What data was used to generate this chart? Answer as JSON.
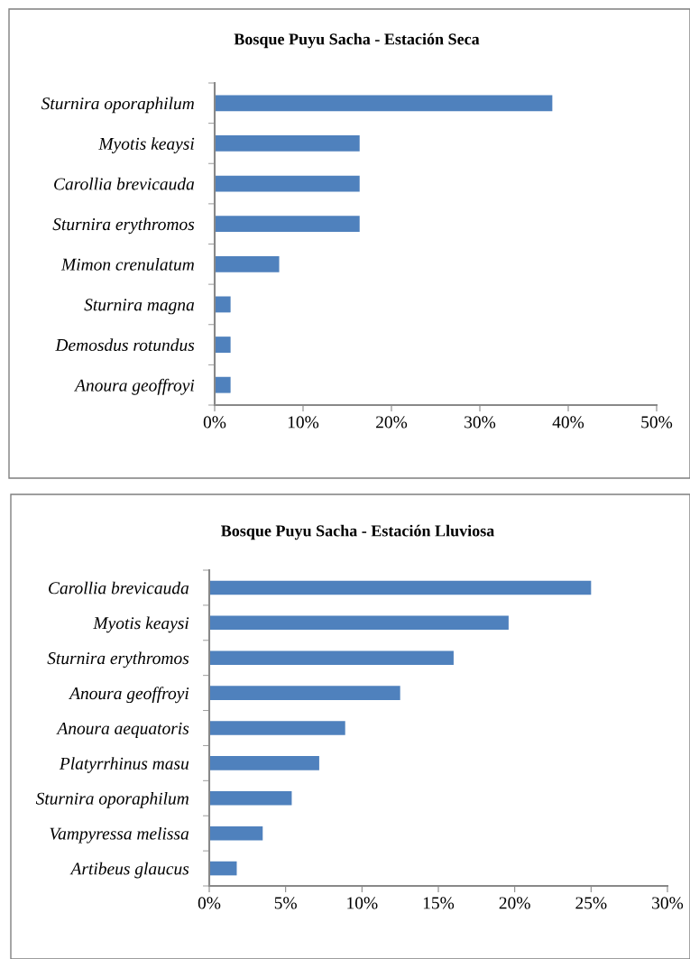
{
  "chart_data": [
    {
      "type": "bar",
      "orientation": "horizontal",
      "title": "Bosque Puyu Sacha - Estación Seca",
      "categories": [
        "Sturnira oporaphilum",
        "Myotis keaysi",
        "Carollia brevicauda",
        "Sturnira erythromos",
        "Mimon crenulatum",
        "Sturnira magna",
        "Demosdus rotundus",
        "Anoura geoffroyi"
      ],
      "values": [
        38.2,
        16.4,
        16.4,
        16.4,
        7.3,
        1.8,
        1.8,
        1.8
      ],
      "color": "#4f81bd",
      "xlim": [
        0,
        50
      ],
      "xticks": [
        {
          "value": 0,
          "label": "0%"
        },
        {
          "value": 10,
          "label": "10%"
        },
        {
          "value": 20,
          "label": "20%"
        },
        {
          "value": 30,
          "label": "30%"
        },
        {
          "value": 40,
          "label": "40%"
        },
        {
          "value": 50,
          "label": "50%"
        }
      ],
      "grid": false,
      "legend": false
    },
    {
      "type": "bar",
      "orientation": "horizontal",
      "title": "Bosque Puyu Sacha - Estación Lluviosa",
      "categories": [
        "Carollia brevicauda",
        "Myotis keaysi",
        "Sturnira erythromos",
        "Anoura geoffroyi",
        "Anoura aequatoris",
        "Platyrrhinus masu",
        "Sturnira oporaphilum",
        "Vampyressa melissa",
        "Artibeus glaucus"
      ],
      "values": [
        25.0,
        19.6,
        16.0,
        12.5,
        8.9,
        7.2,
        5.4,
        3.5,
        1.8
      ],
      "color": "#4f81bd",
      "xlim": [
        0,
        30
      ],
      "xticks": [
        {
          "value": 0,
          "label": "0%"
        },
        {
          "value": 5,
          "label": "5%"
        },
        {
          "value": 10,
          "label": "10%"
        },
        {
          "value": 15,
          "label": "15%"
        },
        {
          "value": 20,
          "label": "20%"
        },
        {
          "value": 25,
          "label": "25%"
        },
        {
          "value": 30,
          "label": "30%"
        }
      ],
      "grid": false,
      "legend": false
    }
  ]
}
